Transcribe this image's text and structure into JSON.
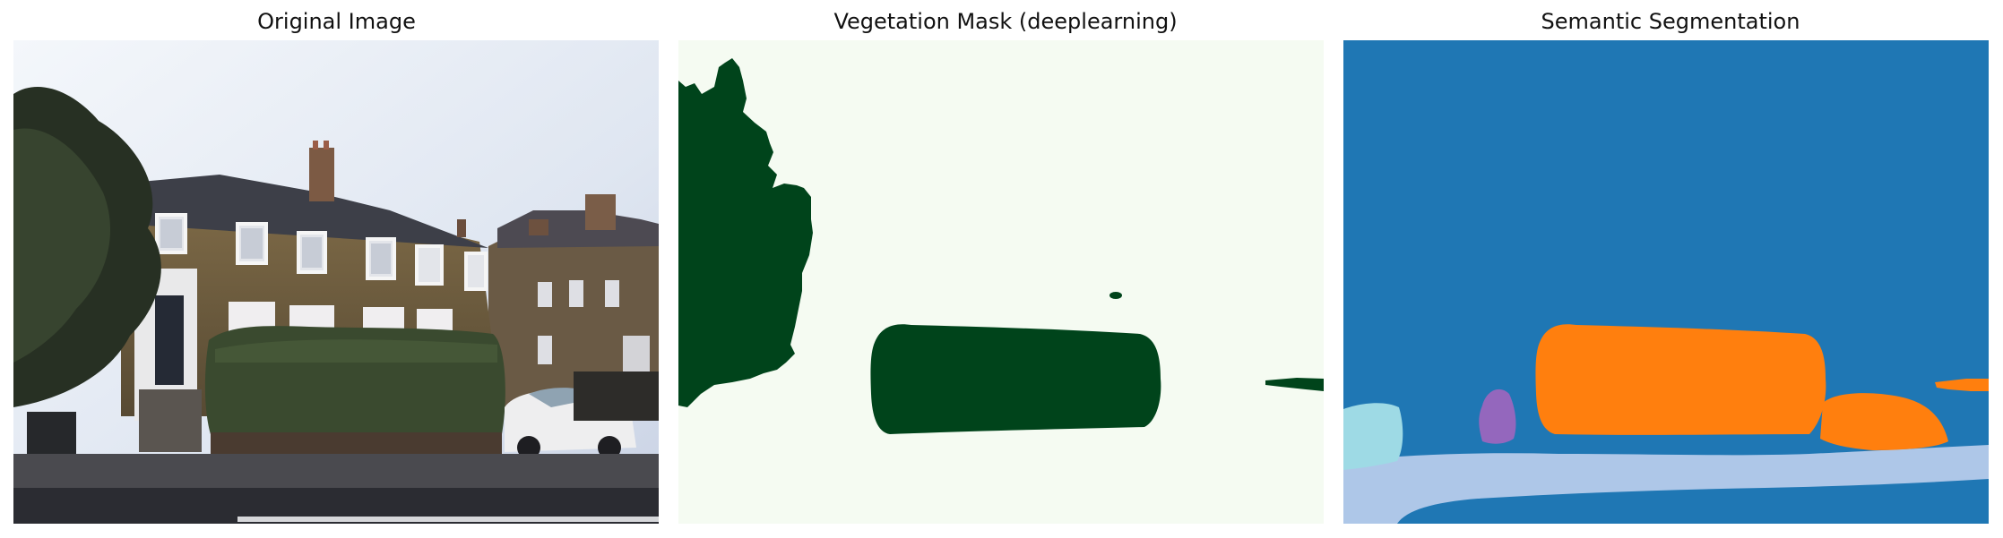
{
  "panels": [
    {
      "title": "Original Image"
    },
    {
      "title": "Vegetation Mask (deeplearning)"
    },
    {
      "title": "Semantic Segmentation"
    }
  ],
  "colors": {
    "mask_background": "#f5fbf2",
    "mask_vegetation": "#00441b",
    "seg_background": "#1f77b4",
    "seg_orange": "#ff7f0e",
    "seg_light_blue": "#aec7e8",
    "seg_purple": "#9467bd",
    "seg_cyan": "#9edae5"
  }
}
